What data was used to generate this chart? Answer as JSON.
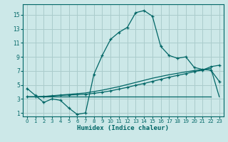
{
  "xlabel": "Humidex (Indice chaleur)",
  "xlim": [
    -0.5,
    23.5
  ],
  "ylim": [
    0.5,
    16.5
  ],
  "yticks": [
    1,
    3,
    5,
    7,
    9,
    11,
    13,
    15
  ],
  "xticks": [
    0,
    1,
    2,
    3,
    4,
    5,
    6,
    7,
    8,
    9,
    10,
    11,
    12,
    13,
    14,
    15,
    16,
    17,
    18,
    19,
    20,
    21,
    22,
    23
  ],
  "bg_color": "#cce8e8",
  "grid_color": "#aacccc",
  "line_color": "#006666",
  "line1_x": [
    0,
    1,
    2,
    3,
    4,
    5,
    6,
    7,
    8,
    9,
    10,
    11,
    12,
    13,
    14,
    15,
    16,
    17,
    18,
    19,
    20,
    21,
    22,
    23
  ],
  "line1_y": [
    4.5,
    3.5,
    2.5,
    3.0,
    2.8,
    1.7,
    0.8,
    1.0,
    6.5,
    9.2,
    11.5,
    12.5,
    13.2,
    15.3,
    15.6,
    14.8,
    10.5,
    9.2,
    8.8,
    9.0,
    7.5,
    7.2,
    7.1,
    5.5
  ],
  "line2_x": [
    0,
    1,
    2,
    3,
    4,
    5,
    6,
    7,
    8,
    9,
    10,
    11,
    12,
    13,
    14,
    15,
    16,
    17,
    18,
    19,
    20,
    21,
    22,
    23
  ],
  "line2_y": [
    3.3,
    3.3,
    3.35,
    3.4,
    3.5,
    3.55,
    3.6,
    3.65,
    3.8,
    3.95,
    4.15,
    4.4,
    4.65,
    4.95,
    5.2,
    5.5,
    5.8,
    6.1,
    6.35,
    6.6,
    6.9,
    7.1,
    7.6,
    7.8
  ],
  "line3_x": [
    0,
    22
  ],
  "line3_y": [
    3.3,
    3.3
  ],
  "line4_x": [
    0,
    1,
    2,
    3,
    4,
    5,
    6,
    7,
    8,
    9,
    10,
    11,
    12,
    13,
    14,
    15,
    16,
    17,
    18,
    19,
    20,
    21,
    22,
    23
  ],
  "line4_y": [
    3.3,
    3.3,
    3.35,
    3.45,
    3.55,
    3.65,
    3.75,
    3.85,
    4.05,
    4.25,
    4.5,
    4.75,
    5.05,
    5.35,
    5.65,
    5.95,
    6.2,
    6.45,
    6.65,
    6.85,
    7.05,
    7.2,
    7.35,
    3.3
  ]
}
